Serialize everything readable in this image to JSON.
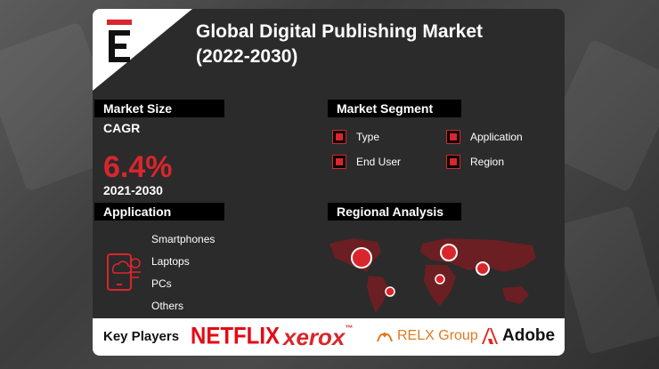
{
  "header": {
    "title_line1": "Global Digital Publishing Market",
    "title_line2": "(2022-2030)"
  },
  "logo": {
    "icon": "e-brand-logo-icon",
    "letter": "E"
  },
  "market_size": {
    "label": "Market Size",
    "metric_label": "CAGR",
    "value": "6.4%",
    "period": "2021-2030"
  },
  "market_segment": {
    "label": "Market Segment",
    "items": [
      "Type",
      "Application",
      "End User",
      "Region"
    ]
  },
  "application": {
    "label": "Application",
    "icon": "device-cloud-icon",
    "items": [
      "Smartphones",
      "Laptops",
      "PCs",
      "Others"
    ]
  },
  "regional_analysis": {
    "label": "Regional Analysis",
    "icon": "world-map-icon"
  },
  "key_players": {
    "label": "Key Players",
    "companies": [
      "NETFLIX",
      "xerox",
      "RELX Group",
      "Adobe"
    ],
    "xerox_tm": "™"
  },
  "colors": {
    "accent": "#d9262c",
    "card": "#2b2b2b",
    "label_bg": "#000000",
    "map": "#6b1f22"
  }
}
